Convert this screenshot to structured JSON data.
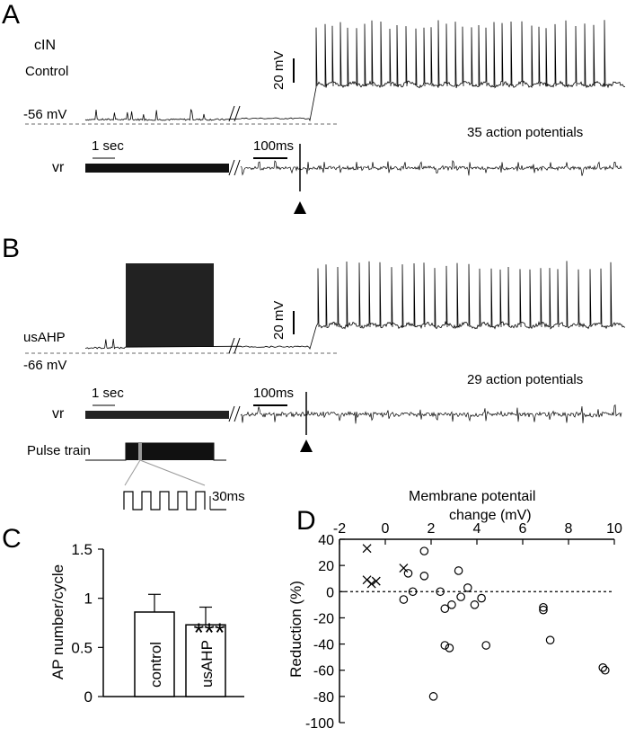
{
  "panel_a": {
    "letter": "A",
    "cell_label": "cIN",
    "condition": "Control",
    "rest_potential": "-56 mV",
    "scale_mv": "20 mV",
    "time_scale_left": "1 sec",
    "time_scale_right": "100ms",
    "ap_count": "35 action potentials",
    "vr_label": "vr"
  },
  "panel_b": {
    "letter": "B",
    "condition": "usAHP",
    "rest_potential": "-66 mV",
    "scale_mv": "20 mV",
    "time_scale_left": "1 sec",
    "time_scale_right": "100ms",
    "ap_count": "29 action potentials",
    "vr_label": "vr",
    "pulse_label": "Pulse train",
    "pulse_scale": "30ms"
  },
  "panel_c": {
    "letter": "C",
    "significance": "***"
  },
  "panel_d": {
    "letter": "D",
    "top_axis_label_line1": "Membrane potentail",
    "top_axis_label_line2": "change (mV)"
  },
  "chart_data": [
    {
      "type": "bar",
      "categories": [
        "control",
        "usAHP"
      ],
      "values": [
        0.86,
        0.73
      ],
      "errors": [
        0.18,
        0.18
      ],
      "ylabel": "AP number/cycle",
      "ylim": [
        0,
        1.5
      ],
      "yticks": [
        "0",
        "0.5",
        "1",
        "1.5"
      ],
      "annotation": "***"
    },
    {
      "type": "scatter",
      "xlabel": "Membrane potentail change (mV)",
      "ylabel": "Reduction (%)",
      "xlim": [
        -2,
        10
      ],
      "ylim": [
        -100,
        40
      ],
      "xticks": [
        "-2",
        "0",
        "2",
        "4",
        "6",
        "8",
        "10"
      ],
      "yticks": [
        "40",
        "20",
        "0",
        "-20",
        "-40",
        "-60",
        "-80",
        "-100"
      ],
      "x_axis_position": "top",
      "reference_line": 0,
      "series": [
        {
          "marker": "x",
          "points": [
            [
              -0.8,
              33
            ],
            [
              -0.8,
              9
            ],
            [
              -0.6,
              6
            ],
            [
              -0.4,
              8
            ],
            [
              0.8,
              18
            ]
          ]
        },
        {
          "marker": "o",
          "points": [
            [
              1.0,
              14
            ],
            [
              0.8,
              -6
            ],
            [
              1.2,
              0
            ],
            [
              1.7,
              31
            ],
            [
              1.7,
              12
            ],
            [
              2.1,
              -80
            ],
            [
              2.4,
              0
            ],
            [
              2.6,
              -41
            ],
            [
              2.8,
              -43
            ],
            [
              2.6,
              -13
            ],
            [
              2.9,
              -10
            ],
            [
              3.2,
              16
            ],
            [
              3.3,
              -4
            ],
            [
              3.6,
              3
            ],
            [
              3.9,
              -10
            ],
            [
              4.2,
              -5
            ],
            [
              4.4,
              -41
            ],
            [
              6.9,
              -12
            ],
            [
              6.9,
              -14
            ],
            [
              7.2,
              -37
            ],
            [
              9.5,
              -58
            ],
            [
              9.6,
              -60
            ]
          ]
        }
      ]
    }
  ]
}
